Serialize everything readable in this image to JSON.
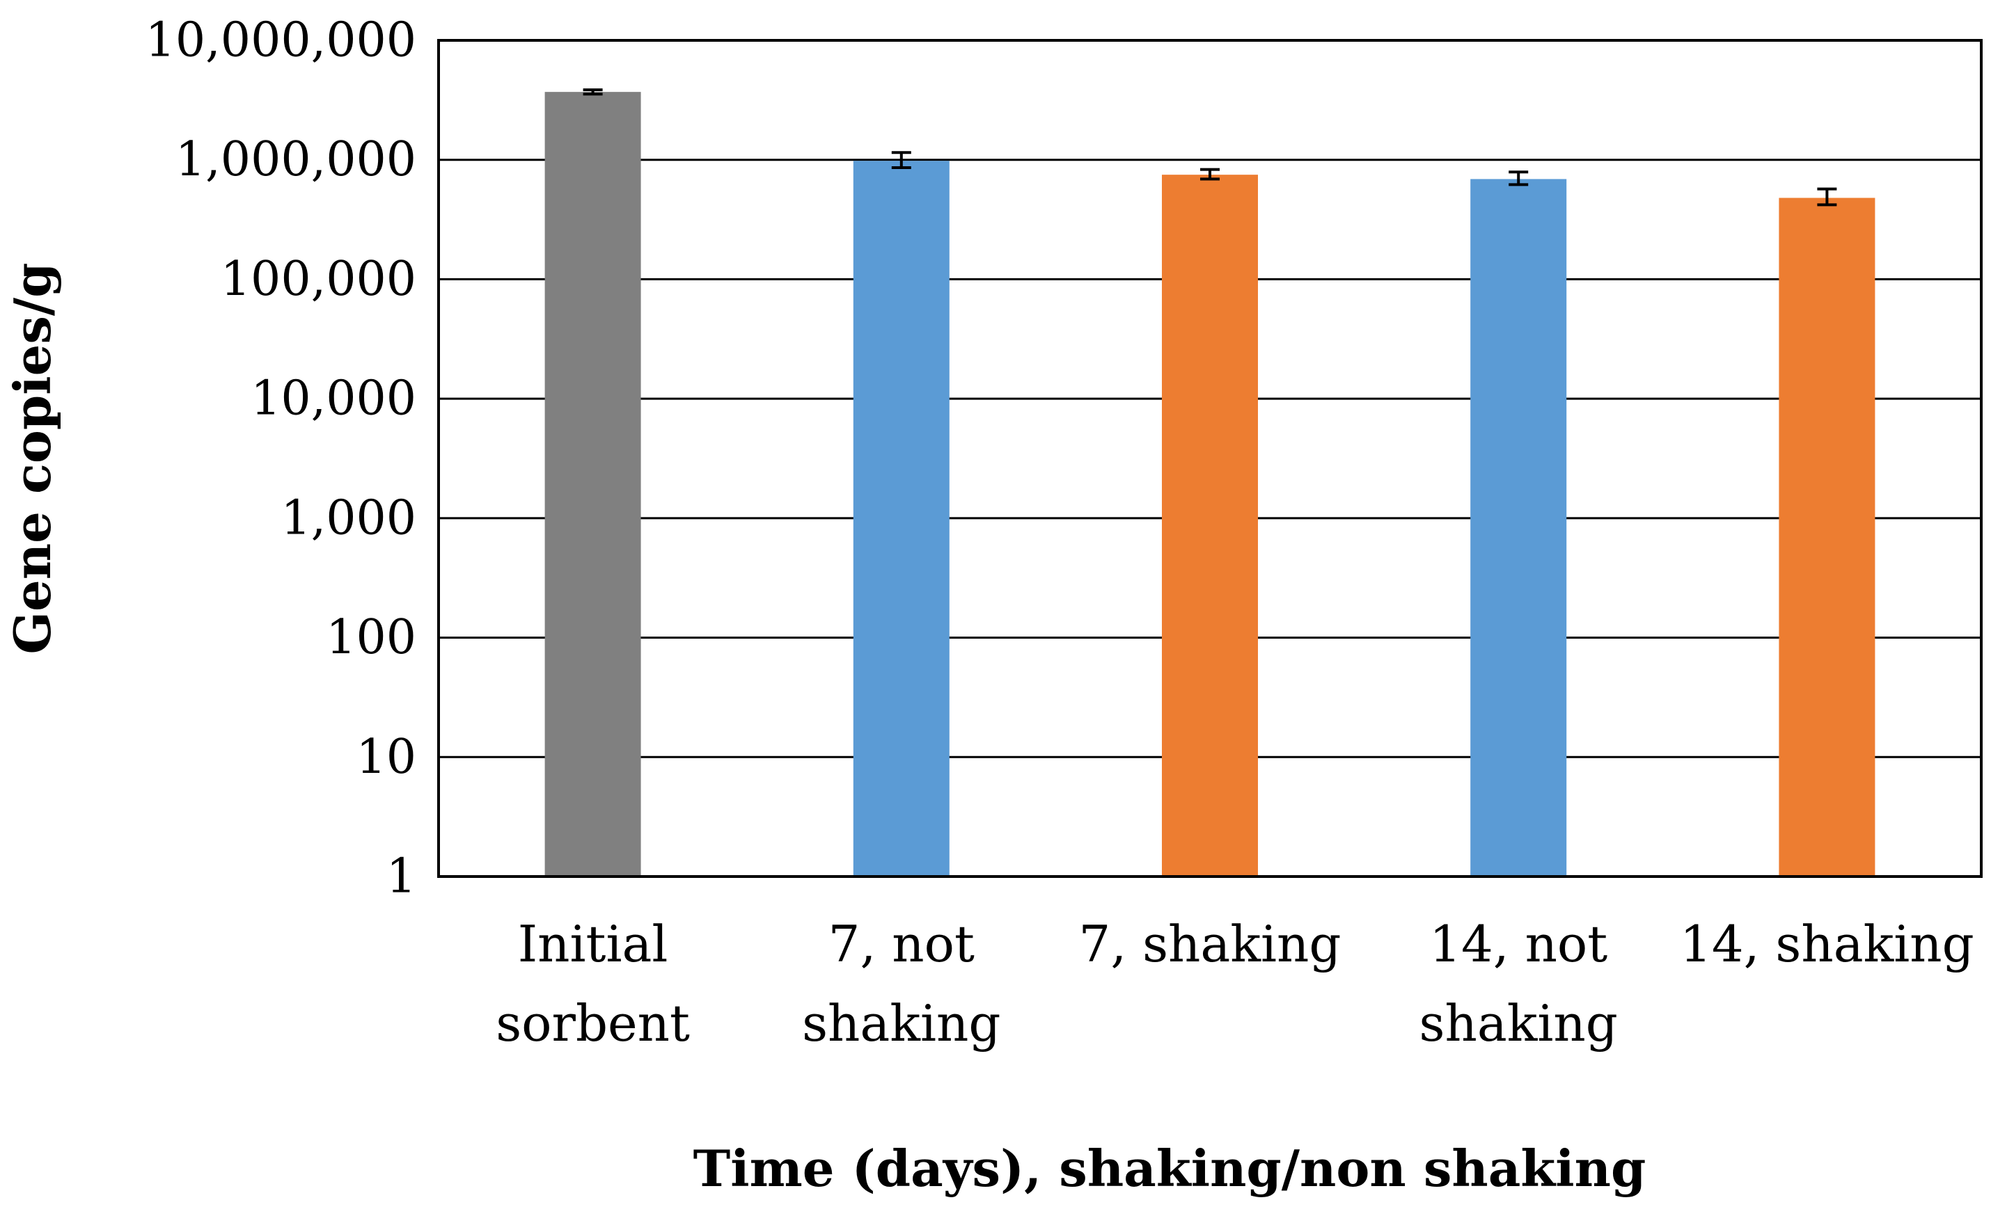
{
  "chart_data": {
    "type": "bar",
    "title": "",
    "xlabel": "Time (days), shaking/non shaking",
    "ylabel": "Gene copies/g",
    "yscale": "log",
    "ylim": [
      1,
      10000000
    ],
    "y_ticks": [
      1,
      10,
      100,
      1000,
      10000,
      100000,
      1000000,
      10000000
    ],
    "y_tick_labels": [
      "1",
      "10",
      "100",
      "1,000",
      "10,000",
      "100,000",
      "1,000,000",
      "10,000,000"
    ],
    "grid": true,
    "legend": "none",
    "categories": [
      [
        "Initial",
        "sorbent"
      ],
      [
        "7, not",
        "shaking"
      ],
      [
        "7, shaking"
      ],
      [
        "14, not",
        "shaking"
      ],
      [
        "14, shaking"
      ]
    ],
    "values": [
      3700000,
      980000,
      750000,
      690000,
      480000
    ],
    "error_low": [
      3550000,
      860000,
      690000,
      620000,
      420000
    ],
    "error_high": [
      3850000,
      1150000,
      830000,
      790000,
      570000
    ],
    "bar_colors": [
      "#808080",
      "#5b9bd5",
      "#ed7d31",
      "#5b9bd5",
      "#ed7d31"
    ]
  }
}
